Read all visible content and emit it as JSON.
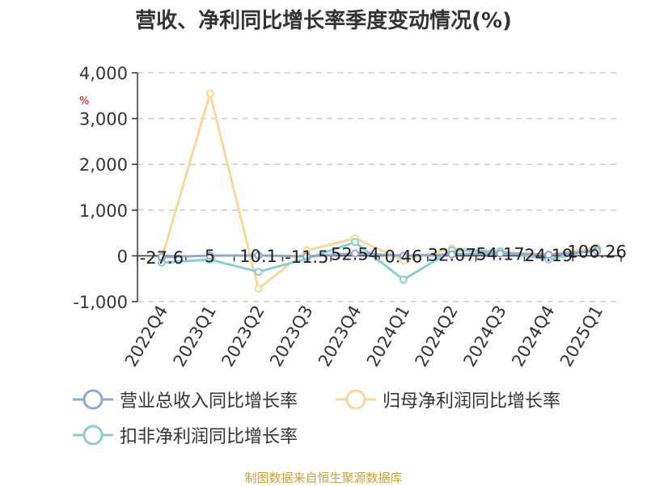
{
  "title": "营收、净利同比增长率季度变动情况(%)",
  "unit_label": "%",
  "source": "制图数据来自恒生聚源数据库",
  "chart_data": {
    "type": "line",
    "title": "营收、净利同比增长率季度变动情况(%)",
    "categories": [
      "2022Q4",
      "2023Q1",
      "2023Q2",
      "2023Q3",
      "2023Q4",
      "2024Q1",
      "2024Q2",
      "2024Q3",
      "2024Q4",
      "2025Q1"
    ],
    "ylim": [
      -1000,
      4000
    ],
    "yticks": [
      -1000,
      0,
      1000,
      2000,
      3000,
      4000
    ],
    "ytick_labels": [
      "-1,000",
      "0",
      "1,000",
      "2,000",
      "3,000",
      "4,000"
    ],
    "grid": true,
    "legend_position": "bottom",
    "series": [
      {
        "name": "营业总收入同比增长率",
        "color": "#8fa8d0",
        "values": [
          -27.6,
          5,
          10.1,
          -11.5,
          52.54,
          0.46,
          32.07,
          54.17,
          24.19,
          106.26
        ],
        "labels": [
          "-27.6",
          "5",
          "10.1",
          "-11.5",
          "52.54",
          "0.46",
          "32.07",
          "54.17",
          "24.19",
          "106.26"
        ]
      },
      {
        "name": "归母净利润同比增长率",
        "color": "#f8d898",
        "values": [
          -60,
          3550,
          -720,
          120,
          380,
          -100,
          160,
          80,
          30,
          180
        ]
      },
      {
        "name": "扣非净利润同比增长率",
        "color": "#88d0d0",
        "values": [
          -150,
          -80,
          -350,
          -60,
          300,
          -520,
          120,
          100,
          -80,
          150
        ]
      }
    ]
  }
}
